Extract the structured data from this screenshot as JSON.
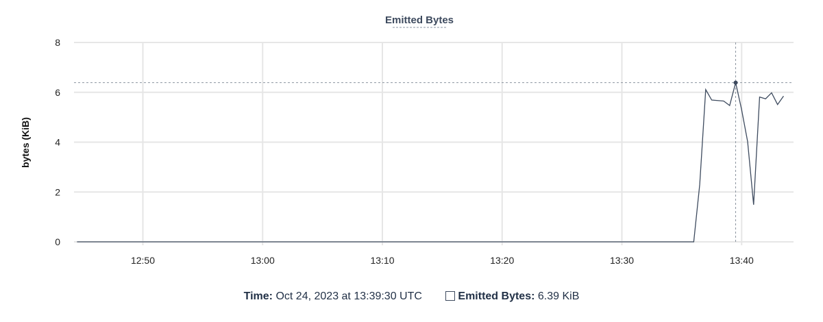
{
  "chart_data": {
    "type": "line",
    "title": "Emitted Bytes",
    "xlabel": "",
    "ylabel": "bytes (KiB)",
    "ylim": [
      0,
      8
    ],
    "yticks": [
      "0",
      "2",
      "4",
      "6",
      "8"
    ],
    "xticks": [
      "12:50",
      "13:00",
      "13:10",
      "13:20",
      "13:30",
      "13:40"
    ],
    "xlim": [
      "12:44:15",
      "13:44:20"
    ],
    "grid": true,
    "line_color": "#3d4a5e",
    "series": [
      {
        "name": "Emitted Bytes",
        "x": [
          "12:44:30",
          "13:36:00",
          "13:36:30",
          "13:37:00",
          "13:37:30",
          "13:38:00",
          "13:38:30",
          "13:39:00",
          "13:39:30",
          "13:40:00",
          "13:40:30",
          "13:41:00",
          "13:41:30",
          "13:42:00",
          "13:42:30",
          "13:43:00",
          "13:43:30"
        ],
        "values": [
          0,
          0,
          2.3,
          6.11,
          5.69,
          5.67,
          5.65,
          5.47,
          6.39,
          5.3,
          4.02,
          1.49,
          5.81,
          5.74,
          5.98,
          5.51,
          5.85
        ]
      }
    ],
    "hover": {
      "x": "13:39:30",
      "value": 6.39
    }
  },
  "tooltip": {
    "time_label": "Time:",
    "time_value": "Oct 24, 2023 at 13:39:30 UTC",
    "series_label": "Emitted Bytes:",
    "series_value": "6.39 KiB"
  }
}
